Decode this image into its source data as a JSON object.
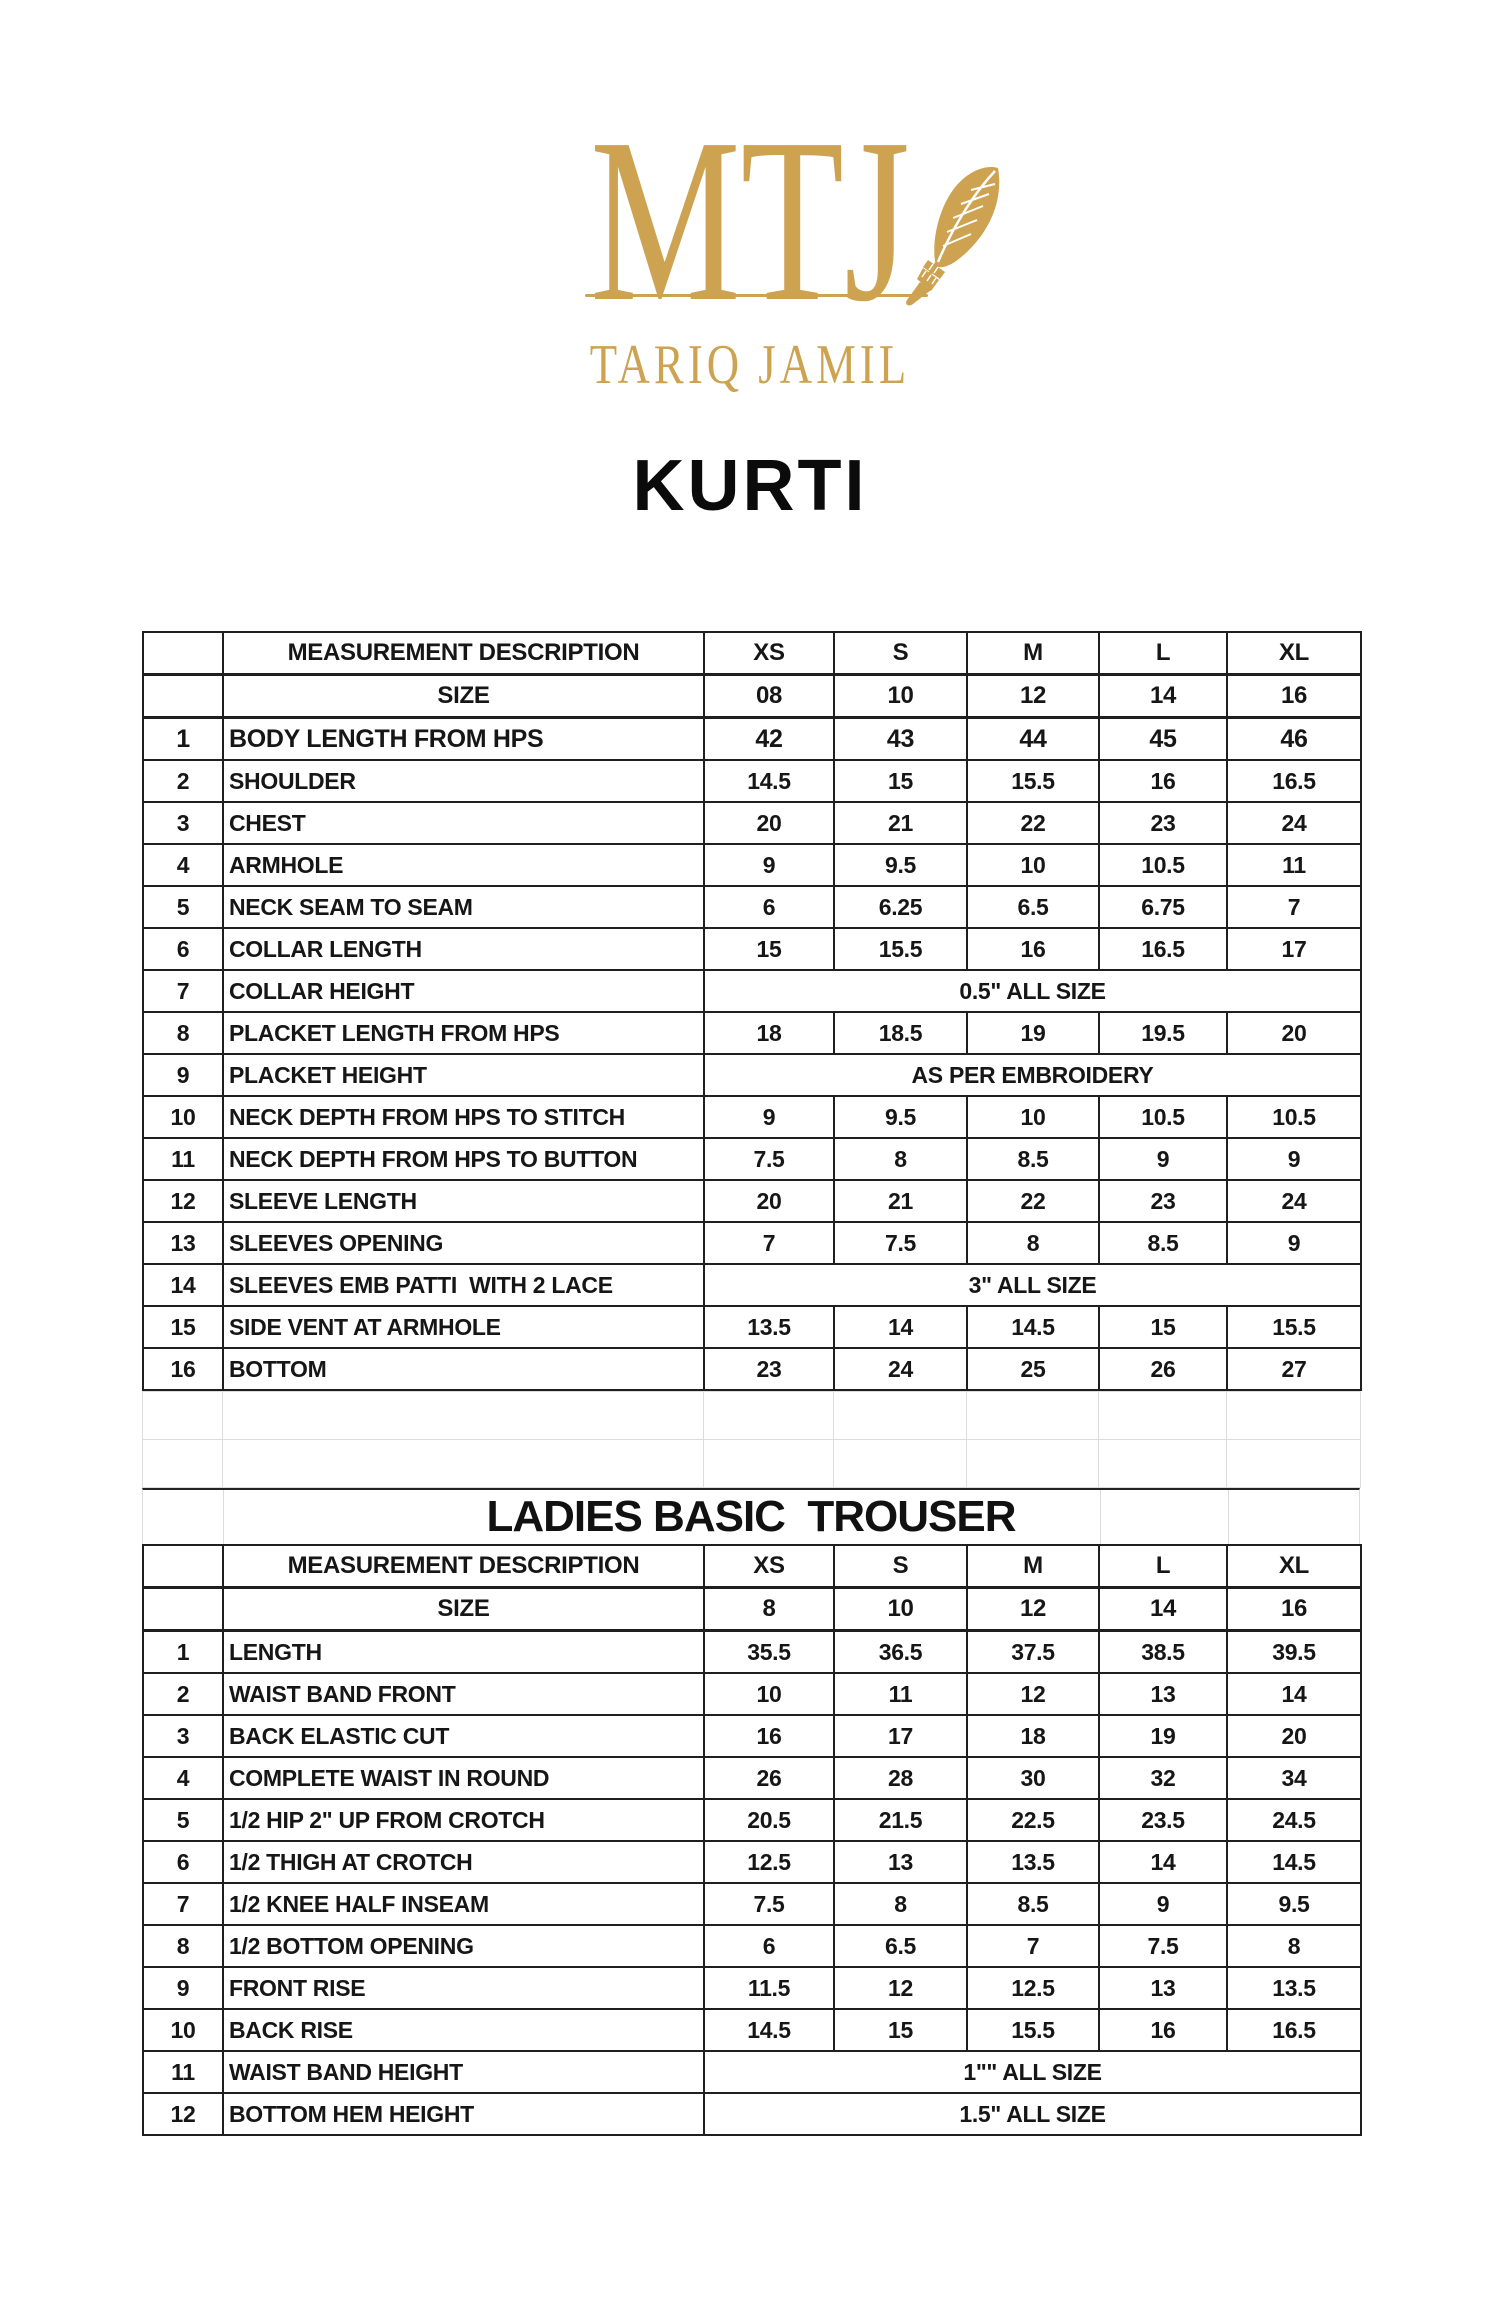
{
  "logo": {
    "monogram": "MTJ",
    "brand": "TARIQ JAMIL",
    "gold_color": "#CDA351"
  },
  "page_title": "KURTI",
  "kurti_table": {
    "header": {
      "description": "MEASUREMENT DESCRIPTION",
      "sizes": [
        "XS",
        "S",
        "M",
        "L",
        "XL"
      ]
    },
    "size_row": {
      "label": "SIZE",
      "values": [
        "08",
        "10",
        "12",
        "14",
        "16"
      ]
    },
    "rows": [
      {
        "num": "1",
        "label": "BODY LENGTH FROM HPS",
        "values": [
          "42",
          "43",
          "44",
          "45",
          "46"
        ],
        "bold": true
      },
      {
        "num": "2",
        "label": "SHOULDER",
        "values": [
          "14.5",
          "15",
          "15.5",
          "16",
          "16.5"
        ]
      },
      {
        "num": "3",
        "label": "CHEST",
        "values": [
          "20",
          "21",
          "22",
          "23",
          "24"
        ]
      },
      {
        "num": "4",
        "label": "ARMHOLE",
        "values": [
          "9",
          "9.5",
          "10",
          "10.5",
          "11"
        ]
      },
      {
        "num": "5",
        "label": "NECK SEAM TO SEAM",
        "values": [
          "6",
          "6.25",
          "6.5",
          "6.75",
          "7"
        ]
      },
      {
        "num": "6",
        "label": "COLLAR LENGTH",
        "values": [
          "15",
          "15.5",
          "16",
          "16.5",
          "17"
        ]
      },
      {
        "num": "7",
        "label": "COLLAR HEIGHT",
        "merged": "0.5\" ALL SIZE"
      },
      {
        "num": "8",
        "label": "PLACKET LENGTH FROM HPS",
        "values": [
          "18",
          "18.5",
          "19",
          "19.5",
          "20"
        ]
      },
      {
        "num": "9",
        "label": "PLACKET HEIGHT",
        "merged": "AS PER EMBROIDERY"
      },
      {
        "num": "10",
        "label": "NECK DEPTH FROM HPS TO STITCH",
        "values": [
          "9",
          "9.5",
          "10",
          "10.5",
          "10.5"
        ]
      },
      {
        "num": "11",
        "label": "NECK DEPTH FROM HPS TO BUTTON",
        "values": [
          "7.5",
          "8",
          "8.5",
          "9",
          "9"
        ]
      },
      {
        "num": "12",
        "label": "SLEEVE LENGTH",
        "values": [
          "20",
          "21",
          "22",
          "23",
          "24"
        ]
      },
      {
        "num": "13",
        "label": "SLEEVES OPENING",
        "values": [
          "7",
          "7.5",
          "8",
          "8.5",
          "9"
        ]
      },
      {
        "num": "14",
        "label": "SLEEVES EMB PATTI  WITH 2 LACE",
        "merged": "3\" ALL SIZE"
      },
      {
        "num": "15",
        "label": "SIDE VENT AT ARMHOLE",
        "values": [
          "13.5",
          "14",
          "14.5",
          "15",
          "15.5"
        ]
      },
      {
        "num": "16",
        "label": "BOTTOM",
        "values": [
          "23",
          "24",
          "25",
          "26",
          "27"
        ]
      }
    ]
  },
  "trouser_table": {
    "title": "LADIES BASIC  TROUSER",
    "header": {
      "description": "MEASUREMENT DESCRIPTION",
      "sizes": [
        "XS",
        "S",
        "M",
        "L",
        "XL"
      ]
    },
    "size_row": {
      "label": "SIZE",
      "values": [
        "8",
        "10",
        "12",
        "14",
        "16"
      ]
    },
    "rows": [
      {
        "num": "1",
        "label": "LENGTH",
        "values": [
          "35.5",
          "36.5",
          "37.5",
          "38.5",
          "39.5"
        ]
      },
      {
        "num": "2",
        "label": "WAIST BAND FRONT",
        "values": [
          "10",
          "11",
          "12",
          "13",
          "14"
        ]
      },
      {
        "num": "3",
        "label": "BACK ELASTIC CUT",
        "values": [
          "16",
          "17",
          "18",
          "19",
          "20"
        ]
      },
      {
        "num": "4",
        "label": "COMPLETE WAIST IN ROUND",
        "values": [
          "26",
          "28",
          "30",
          "32",
          "34"
        ]
      },
      {
        "num": "5",
        "label": "1/2 HIP 2\" UP FROM CROTCH",
        "values": [
          "20.5",
          "21.5",
          "22.5",
          "23.5",
          "24.5"
        ]
      },
      {
        "num": "6",
        "label": "1/2 THIGH AT CROTCH",
        "values": [
          "12.5",
          "13",
          "13.5",
          "14",
          "14.5"
        ]
      },
      {
        "num": "7",
        "label": "1/2 KNEE HALF INSEAM",
        "values": [
          "7.5",
          "8",
          "8.5",
          "9",
          "9.5"
        ]
      },
      {
        "num": "8",
        "label": "1/2 BOTTOM OPENING",
        "values": [
          "6",
          "6.5",
          "7",
          "7.5",
          "8"
        ]
      },
      {
        "num": "9",
        "label": "FRONT RISE",
        "values": [
          "11.5",
          "12",
          "12.5",
          "13",
          "13.5"
        ]
      },
      {
        "num": "10",
        "label": "BACK RISE",
        "values": [
          "14.5",
          "15",
          "15.5",
          "16",
          "16.5"
        ]
      },
      {
        "num": "11",
        "label": "WAIST BAND HEIGHT",
        "merged": "1\"\" ALL SIZE"
      },
      {
        "num": "12",
        "label": "BOTTOM HEM HEIGHT",
        "merged": "1.5\" ALL SIZE"
      }
    ]
  }
}
